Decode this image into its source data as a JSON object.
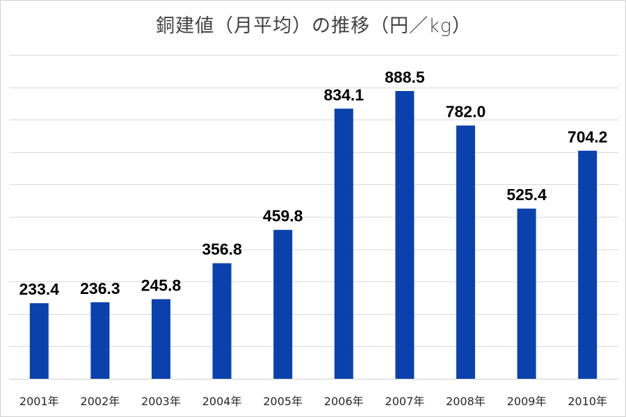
{
  "chart_data": {
    "type": "bar",
    "title": "銅建値（月平均）の推移（円／kg）",
    "categories": [
      "2001年",
      "2002年",
      "2003年",
      "2004年",
      "2005年",
      "2006年",
      "2007年",
      "2008年",
      "2009年",
      "2010年"
    ],
    "values": [
      233.4,
      236.3,
      245.8,
      356.8,
      459.8,
      834.1,
      888.5,
      782.0,
      525.4,
      704.2
    ],
    "data_labels": [
      "233.4",
      "236.3",
      "245.8",
      "356.8",
      "459.8",
      "834.1",
      "888.5",
      "782.0",
      "525.4",
      "704.2"
    ],
    "xlabel": "",
    "ylabel": "",
    "ylim": [
      0,
      1000
    ],
    "grid_step": 100,
    "grid": true,
    "y_tick_labels_shown": false,
    "legend": "none",
    "bar_color": "#0B41AD"
  }
}
